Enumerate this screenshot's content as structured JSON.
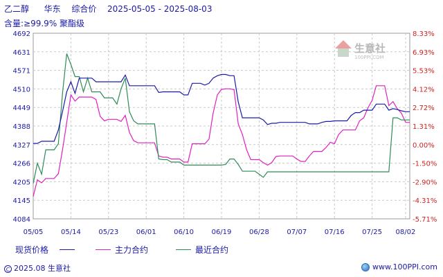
{
  "header": {
    "product": "乙二醇",
    "region": "华东",
    "price_type": "综合价",
    "date_range": "2025-05-05 - 2025-08-03",
    "spec": "含量:≥99.9% 聚酯级"
  },
  "watermark": {
    "text": "生意社",
    "sub": "100PPI.COM"
  },
  "footer": {
    "copyright": "2025.08 生意社",
    "website": "www.100PPI.com"
  },
  "colors": {
    "spot": "#1a1aa6",
    "main": "#e020c0",
    "recent": "#2e8b57",
    "axis_text": "#1a1aa6",
    "right_axis_text": "#cc2222",
    "grid": "#c8c8c8"
  },
  "chart_data": {
    "type": "line",
    "title": "乙二醇 华东 综合价 2025-05-05 - 2025-08-03",
    "subtitle": "含量:≥99.9% 聚酯级",
    "x_ticks": [
      "05/05",
      "05/14",
      "05/23",
      "06/01",
      "06/10",
      "06/19",
      "06/28",
      "07/07",
      "07/16",
      "07/25",
      "08/02"
    ],
    "y_ticks": [
      "4084",
      "4145",
      "4205",
      "4266",
      "4327",
      "4388",
      "4449",
      "4510",
      "4571",
      "4631",
      "4692"
    ],
    "ylim": [
      4084,
      4692
    ],
    "y2_ticks": [
      "-5.71%",
      "-4.31%",
      "-2.90%",
      "-1.50%",
      "0.00%",
      "1.31%",
      "2.72%",
      "4.12%",
      "5.53%",
      "6.93%",
      "8.33%"
    ],
    "y2lim": [
      -5.71,
      8.33
    ],
    "x_start": "2025-05-05",
    "x_end": "2025-08-03",
    "grid": true,
    "legend_position": "bottom",
    "series": [
      {
        "name": "现货价格",
        "color": "#1a1aa6",
        "points": [
          [
            "05/05",
            4331
          ],
          [
            "05/06",
            4331
          ],
          [
            "05/07",
            4338
          ],
          [
            "05/08",
            4338
          ],
          [
            "05/09",
            4338
          ],
          [
            "05/10",
            4338
          ],
          [
            "05/11",
            4375
          ],
          [
            "05/12",
            4435
          ],
          [
            "05/13",
            4500
          ],
          [
            "05/14",
            4533
          ],
          [
            "05/15",
            4495
          ],
          [
            "05/16",
            4545
          ],
          [
            "05/17",
            4545
          ],
          [
            "05/18",
            4545
          ],
          [
            "05/19",
            4545
          ],
          [
            "05/20",
            4533
          ],
          [
            "05/21",
            4533
          ],
          [
            "05/22",
            4533
          ],
          [
            "05/23",
            4533
          ],
          [
            "05/24",
            4533
          ],
          [
            "05/25",
            4533
          ],
          [
            "05/26",
            4533
          ],
          [
            "05/27",
            4555
          ],
          [
            "05/28",
            4520
          ],
          [
            "05/29",
            4520
          ],
          [
            "05/30",
            4520
          ],
          [
            "05/31",
            4520
          ],
          [
            "06/01",
            4520
          ],
          [
            "06/02",
            4520
          ],
          [
            "06/03",
            4520
          ],
          [
            "06/04",
            4498
          ],
          [
            "06/05",
            4500
          ],
          [
            "06/06",
            4500
          ],
          [
            "06/07",
            4500
          ],
          [
            "06/08",
            4500
          ],
          [
            "06/09",
            4500
          ],
          [
            "06/10",
            4490
          ],
          [
            "06/11",
            4490
          ],
          [
            "06/12",
            4528
          ],
          [
            "06/13",
            4528
          ],
          [
            "06/14",
            4528
          ],
          [
            "06/15",
            4522
          ],
          [
            "06/16",
            4528
          ],
          [
            "06/17",
            4545
          ],
          [
            "06/18",
            4553
          ],
          [
            "06/19",
            4557
          ],
          [
            "06/20",
            4557
          ],
          [
            "06/21",
            4553
          ],
          [
            "06/22",
            4553
          ],
          [
            "06/23",
            4467
          ],
          [
            "06/24",
            4415
          ],
          [
            "06/25",
            4415
          ],
          [
            "06/26",
            4415
          ],
          [
            "06/27",
            4415
          ],
          [
            "06/28",
            4415
          ],
          [
            "06/29",
            4408
          ],
          [
            "06/30",
            4393
          ],
          [
            "07/01",
            4397
          ],
          [
            "07/02",
            4397
          ],
          [
            "07/03",
            4400
          ],
          [
            "07/04",
            4400
          ],
          [
            "07/05",
            4400
          ],
          [
            "07/06",
            4400
          ],
          [
            "07/07",
            4400
          ],
          [
            "07/08",
            4400
          ],
          [
            "07/09",
            4400
          ],
          [
            "07/10",
            4395
          ],
          [
            "07/11",
            4395
          ],
          [
            "07/12",
            4395
          ],
          [
            "07/13",
            4400
          ],
          [
            "07/14",
            4403
          ],
          [
            "07/15",
            4403
          ],
          [
            "07/16",
            4405
          ],
          [
            "07/17",
            4405
          ],
          [
            "07/18",
            4405
          ],
          [
            "07/19",
            4405
          ],
          [
            "07/20",
            4423
          ],
          [
            "07/21",
            4432
          ],
          [
            "07/22",
            4432
          ],
          [
            "07/23",
            4440
          ],
          [
            "07/24",
            4440
          ],
          [
            "07/25",
            4440
          ],
          [
            "07/26",
            4460
          ],
          [
            "07/27",
            4460
          ],
          [
            "07/28",
            4460
          ],
          [
            "07/29",
            4440
          ],
          [
            "07/30",
            4445
          ],
          [
            "07/31",
            4442
          ],
          [
            "08/01",
            4438
          ],
          [
            "08/02",
            4435
          ],
          [
            "08/03",
            4435
          ]
        ]
      },
      {
        "name": "主力合约",
        "color": "#e020c0",
        "points": [
          [
            "05/05",
            4157
          ],
          [
            "05/06",
            4212
          ],
          [
            "05/07",
            4202
          ],
          [
            "05/08",
            4216
          ],
          [
            "05/09",
            4216
          ],
          [
            "05/10",
            4216
          ],
          [
            "05/11",
            4232
          ],
          [
            "05/12",
            4310
          ],
          [
            "05/13",
            4400
          ],
          [
            "05/14",
            4490
          ],
          [
            "05/15",
            4470
          ],
          [
            "05/16",
            4483
          ],
          [
            "05/17",
            4483
          ],
          [
            "05/18",
            4483
          ],
          [
            "05/19",
            4483
          ],
          [
            "05/20",
            4475
          ],
          [
            "05/21",
            4420
          ],
          [
            "05/22",
            4405
          ],
          [
            "05/23",
            4410
          ],
          [
            "05/24",
            4410
          ],
          [
            "05/25",
            4410
          ],
          [
            "05/26",
            4403
          ],
          [
            "05/27",
            4423
          ],
          [
            "05/28",
            4367
          ],
          [
            "05/29",
            4340
          ],
          [
            "05/30",
            4333
          ],
          [
            "05/31",
            4333
          ],
          [
            "06/01",
            4333
          ],
          [
            "06/02",
            4333
          ],
          [
            "06/03",
            4333
          ],
          [
            "06/04",
            4290
          ],
          [
            "06/05",
            4286
          ],
          [
            "06/06",
            4286
          ],
          [
            "06/07",
            4280
          ],
          [
            "06/08",
            4280
          ],
          [
            "06/09",
            4280
          ],
          [
            "06/10",
            4270
          ],
          [
            "06/11",
            4270
          ],
          [
            "06/12",
            4330
          ],
          [
            "06/13",
            4330
          ],
          [
            "06/14",
            4330
          ],
          [
            "06/15",
            4330
          ],
          [
            "06/16",
            4345
          ],
          [
            "06/17",
            4430
          ],
          [
            "06/18",
            4490
          ],
          [
            "06/19",
            4508
          ],
          [
            "06/20",
            4510
          ],
          [
            "06/21",
            4510
          ],
          [
            "06/22",
            4507
          ],
          [
            "06/23",
            4395
          ],
          [
            "06/24",
            4360
          ],
          [
            "06/25",
            4310
          ],
          [
            "06/26",
            4278
          ],
          [
            "06/27",
            4278
          ],
          [
            "06/28",
            4278
          ],
          [
            "06/29",
            4268
          ],
          [
            "06/30",
            4260
          ],
          [
            "07/01",
            4268
          ],
          [
            "07/02",
            4288
          ],
          [
            "07/03",
            4290
          ],
          [
            "07/04",
            4290
          ],
          [
            "07/05",
            4290
          ],
          [
            "07/06",
            4290
          ],
          [
            "07/07",
            4280
          ],
          [
            "07/08",
            4272
          ],
          [
            "07/09",
            4272
          ],
          [
            "07/10",
            4290
          ],
          [
            "07/11",
            4305
          ],
          [
            "07/12",
            4305
          ],
          [
            "07/13",
            4305
          ],
          [
            "07/14",
            4318
          ],
          [
            "07/15",
            4335
          ],
          [
            "07/16",
            4330
          ],
          [
            "07/17",
            4360
          ],
          [
            "07/18",
            4375
          ],
          [
            "07/19",
            4375
          ],
          [
            "07/20",
            4375
          ],
          [
            "07/21",
            4375
          ],
          [
            "07/22",
            4405
          ],
          [
            "07/23",
            4415
          ],
          [
            "07/24",
            4448
          ],
          [
            "07/25",
            4472
          ],
          [
            "07/26",
            4520
          ],
          [
            "07/27",
            4520
          ],
          [
            "07/28",
            4520
          ],
          [
            "07/29",
            4455
          ],
          [
            "07/30",
            4468
          ],
          [
            "07/31",
            4445
          ],
          [
            "08/01",
            4430
          ],
          [
            "08/02",
            4400
          ],
          [
            "08/03",
            4400
          ]
        ]
      },
      {
        "name": "最近合约",
        "color": "#2e8b57",
        "points": [
          [
            "05/05",
            4200
          ],
          [
            "05/06",
            4266
          ],
          [
            "05/07",
            4230
          ],
          [
            "05/08",
            4310
          ],
          [
            "05/09",
            4310
          ],
          [
            "05/10",
            4310
          ],
          [
            "05/11",
            4330
          ],
          [
            "05/12",
            4495
          ],
          [
            "05/13",
            4625
          ],
          [
            "05/14",
            4590
          ],
          [
            "05/15",
            4550
          ],
          [
            "05/16",
            4550
          ],
          [
            "05/17",
            4500
          ],
          [
            "05/18",
            4545
          ],
          [
            "05/19",
            4500
          ],
          [
            "05/20",
            4500
          ],
          [
            "05/21",
            4500
          ],
          [
            "05/22",
            4480
          ],
          [
            "05/23",
            4480
          ],
          [
            "05/24",
            4480
          ],
          [
            "05/25",
            4460
          ],
          [
            "05/26",
            4510
          ],
          [
            "05/27",
            4545
          ],
          [
            "05/28",
            4435
          ],
          [
            "05/29",
            4405
          ],
          [
            "05/30",
            4395
          ],
          [
            "05/31",
            4395
          ],
          [
            "06/01",
            4395
          ],
          [
            "06/02",
            4395
          ],
          [
            "06/03",
            4395
          ],
          [
            "06/04",
            4280
          ],
          [
            "06/05",
            4278
          ],
          [
            "06/06",
            4278
          ],
          [
            "06/07",
            4270
          ],
          [
            "06/08",
            4270
          ],
          [
            "06/09",
            4270
          ],
          [
            "06/10",
            4260
          ],
          [
            "06/11",
            4260
          ],
          [
            "06/12",
            4260
          ],
          [
            "06/13",
            4260
          ],
          [
            "06/14",
            4260
          ],
          [
            "06/15",
            4260
          ],
          [
            "06/16",
            4260
          ],
          [
            "06/17",
            4260
          ],
          [
            "06/18",
            4260
          ],
          [
            "06/19",
            4260
          ],
          [
            "06/20",
            4262
          ],
          [
            "06/21",
            4280
          ],
          [
            "06/22",
            4280
          ],
          [
            "06/23",
            4262
          ],
          [
            "06/24",
            4240
          ],
          [
            "06/25",
            4240
          ],
          [
            "06/26",
            4240
          ],
          [
            "06/27",
            4240
          ],
          [
            "06/28",
            4230
          ],
          [
            "06/29",
            4220
          ],
          [
            "06/30",
            4238
          ],
          [
            "07/01",
            4238
          ],
          [
            "07/02",
            4238
          ],
          [
            "07/03",
            4238
          ],
          [
            "07/04",
            4238
          ],
          [
            "07/05",
            4238
          ],
          [
            "07/06",
            4238
          ],
          [
            "07/07",
            4238
          ],
          [
            "07/08",
            4238
          ],
          [
            "07/09",
            4238
          ],
          [
            "07/10",
            4238
          ],
          [
            "07/11",
            4238
          ],
          [
            "07/12",
            4238
          ],
          [
            "07/13",
            4238
          ],
          [
            "07/14",
            4238
          ],
          [
            "07/15",
            4238
          ],
          [
            "07/16",
            4238
          ],
          [
            "07/17",
            4238
          ],
          [
            "07/18",
            4238
          ],
          [
            "07/19",
            4238
          ],
          [
            "07/20",
            4238
          ],
          [
            "07/21",
            4238
          ],
          [
            "07/22",
            4238
          ],
          [
            "07/23",
            4238
          ],
          [
            "07/24",
            4238
          ],
          [
            "07/25",
            4238
          ],
          [
            "07/26",
            4238
          ],
          [
            "07/27",
            4238
          ],
          [
            "07/28",
            4238
          ],
          [
            "07/29",
            4238
          ],
          [
            "07/30",
            4415
          ],
          [
            "07/31",
            4415
          ],
          [
            "08/01",
            4408
          ],
          [
            "08/02",
            4408
          ],
          [
            "08/03",
            4408
          ]
        ]
      }
    ]
  }
}
